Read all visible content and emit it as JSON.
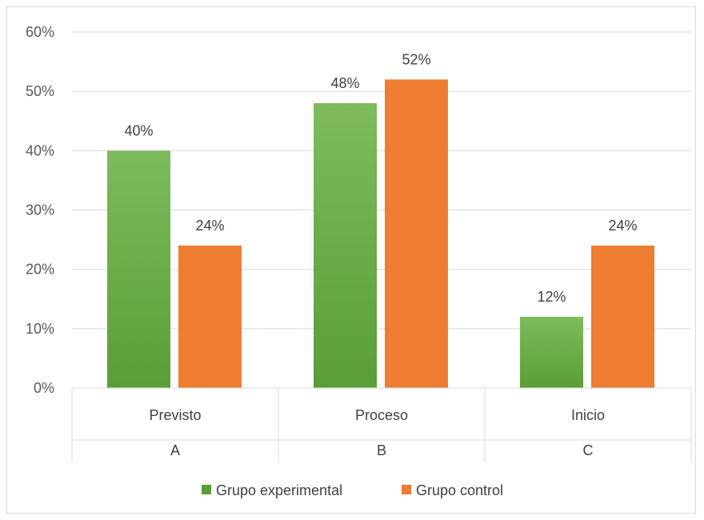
{
  "chart_data": {
    "type": "bar",
    "title": "",
    "xlabel": "",
    "ylabel": "",
    "ylim": [
      0,
      0.6
    ],
    "yticks": [
      0,
      0.1,
      0.2,
      0.3,
      0.4,
      0.5,
      0.6
    ],
    "ytick_labels": [
      "0%",
      "10%",
      "20%",
      "30%",
      "40%",
      "50%",
      "60%"
    ],
    "categories": [
      "Previsto",
      "Proceso",
      "Inicio"
    ],
    "category_groups": [
      "A",
      "B",
      "C"
    ],
    "series": [
      {
        "name": "Grupo experimental",
        "values": [
          0.4,
          0.48,
          0.12
        ],
        "labels": [
          "40%",
          "48%",
          "12%"
        ],
        "color_top": "#7dbb5c",
        "color_bottom": "#5a9e35"
      },
      {
        "name": "Grupo control",
        "values": [
          0.24,
          0.52,
          0.24
        ],
        "labels": [
          "24%",
          "52%",
          "24%"
        ],
        "color_top": "#ed7d31",
        "color_bottom": "#ed7d31"
      }
    ],
    "grid": true,
    "legend_position": "bottom"
  }
}
